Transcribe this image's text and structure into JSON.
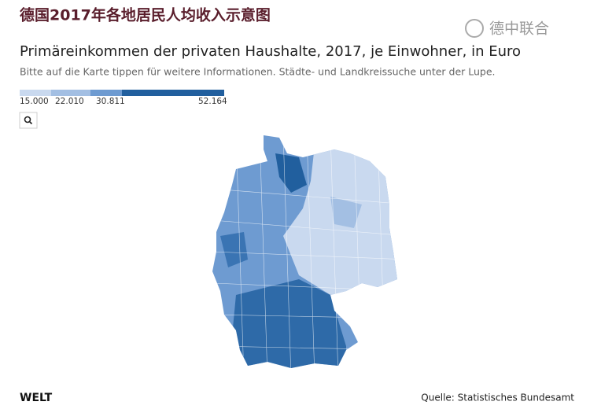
{
  "header": {
    "title": "德国2017年各地居民人均收入示意图",
    "watermark": "德中联合"
  },
  "chart": {
    "title": "Primäreinkommen der privaten Haushalte, 2017, je Einwohner, in Euro",
    "subtitle": "Bitte auf die Karte tippen für weitere Informationen. Städte- und Landkreissuche unter der Lupe.",
    "legend": {
      "labels": [
        "15.000",
        "22.010",
        "30.811",
        "52.164"
      ],
      "colors": [
        "#c9d9ef",
        "#a3bfe3",
        "#6e9bd1",
        "#215f9e"
      ]
    }
  },
  "footer": {
    "brand": "WELT",
    "source": "Quelle: Statistisches Bundesamt"
  }
}
